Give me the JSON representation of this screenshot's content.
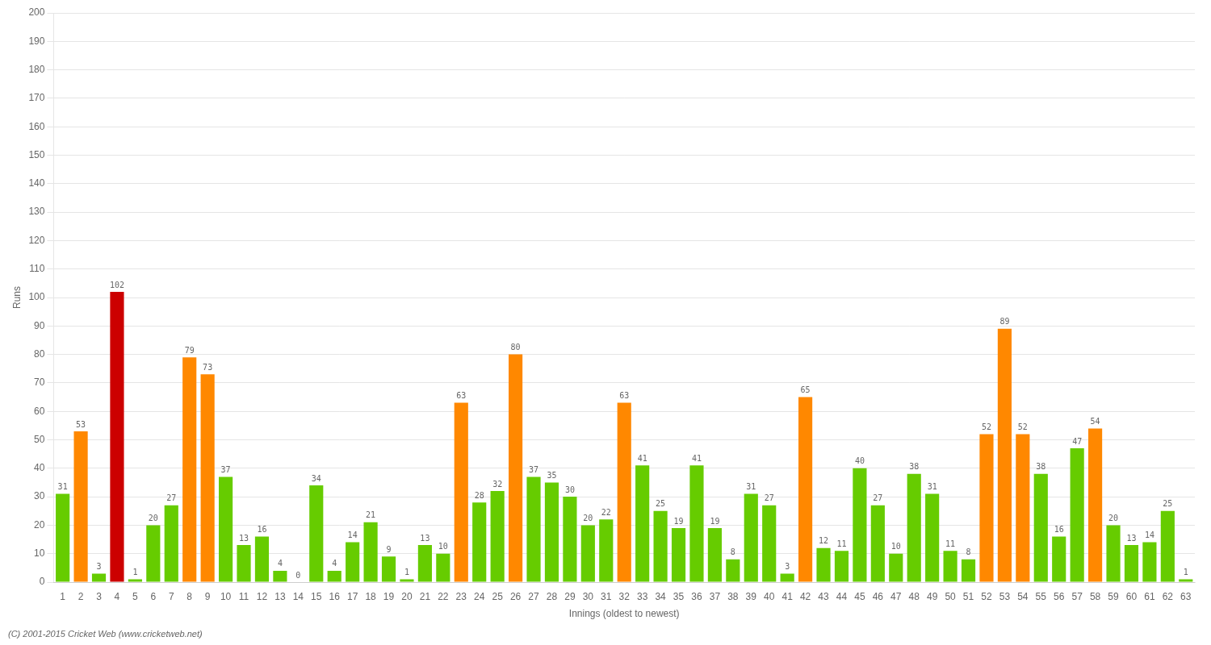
{
  "chart_data": {
    "type": "bar",
    "xlabel": "Innings (oldest to newest)",
    "ylabel": "Runs",
    "annotations": [
      "(C) 2001-2015 Cricket Web (www.cricketweb.net)"
    ],
    "categories": [
      "1",
      "2",
      "3",
      "4",
      "5",
      "6",
      "7",
      "8",
      "9",
      "10",
      "11",
      "12",
      "13",
      "14",
      "15",
      "16",
      "17",
      "18",
      "19",
      "20",
      "21",
      "22",
      "23",
      "24",
      "25",
      "26",
      "27",
      "28",
      "29",
      "30",
      "31",
      "32",
      "33",
      "34",
      "35",
      "36",
      "37",
      "38",
      "39",
      "40",
      "41",
      "42",
      "43",
      "44",
      "45",
      "46",
      "47",
      "48",
      "49",
      "50",
      "51",
      "52",
      "53",
      "54",
      "55",
      "56",
      "57",
      "58",
      "59",
      "60",
      "61",
      "62",
      "63"
    ],
    "values": [
      31,
      53,
      3,
      102,
      1,
      20,
      27,
      79,
      73,
      37,
      13,
      16,
      4,
      0,
      34,
      4,
      14,
      21,
      9,
      1,
      13,
      10,
      63,
      28,
      32,
      80,
      37,
      35,
      30,
      20,
      22,
      63,
      41,
      25,
      19,
      41,
      19,
      8,
      31,
      27,
      3,
      65,
      12,
      11,
      40,
      27,
      10,
      38,
      31,
      11,
      8,
      52,
      89,
      52,
      38,
      16,
      47,
      54,
      20,
      13,
      14,
      25,
      1
    ],
    "colors": [
      "#66cc00",
      "#ff8800",
      "#66cc00",
      "#cc0000",
      "#66cc00",
      "#66cc00",
      "#66cc00",
      "#ff8800",
      "#ff8800",
      "#66cc00",
      "#66cc00",
      "#66cc00",
      "#66cc00",
      "#66cc00",
      "#66cc00",
      "#66cc00",
      "#66cc00",
      "#66cc00",
      "#66cc00",
      "#66cc00",
      "#66cc00",
      "#66cc00",
      "#ff8800",
      "#66cc00",
      "#66cc00",
      "#ff8800",
      "#66cc00",
      "#66cc00",
      "#66cc00",
      "#66cc00",
      "#66cc00",
      "#ff8800",
      "#66cc00",
      "#66cc00",
      "#66cc00",
      "#66cc00",
      "#66cc00",
      "#66cc00",
      "#66cc00",
      "#66cc00",
      "#66cc00",
      "#ff8800",
      "#66cc00",
      "#66cc00",
      "#66cc00",
      "#66cc00",
      "#66cc00",
      "#66cc00",
      "#66cc00",
      "#66cc00",
      "#66cc00",
      "#ff8800",
      "#ff8800",
      "#ff8800",
      "#66cc00",
      "#66cc00",
      "#66cc00",
      "#ff8800",
      "#66cc00",
      "#66cc00",
      "#66cc00",
      "#66cc00",
      "#66cc00"
    ],
    "ylim": [
      0,
      200
    ],
    "yticks": [
      0,
      10,
      20,
      30,
      40,
      50,
      60,
      70,
      80,
      90,
      100,
      110,
      120,
      130,
      140,
      150,
      160,
      170,
      180,
      190,
      200
    ],
    "grid": true,
    "data_labels": true
  }
}
